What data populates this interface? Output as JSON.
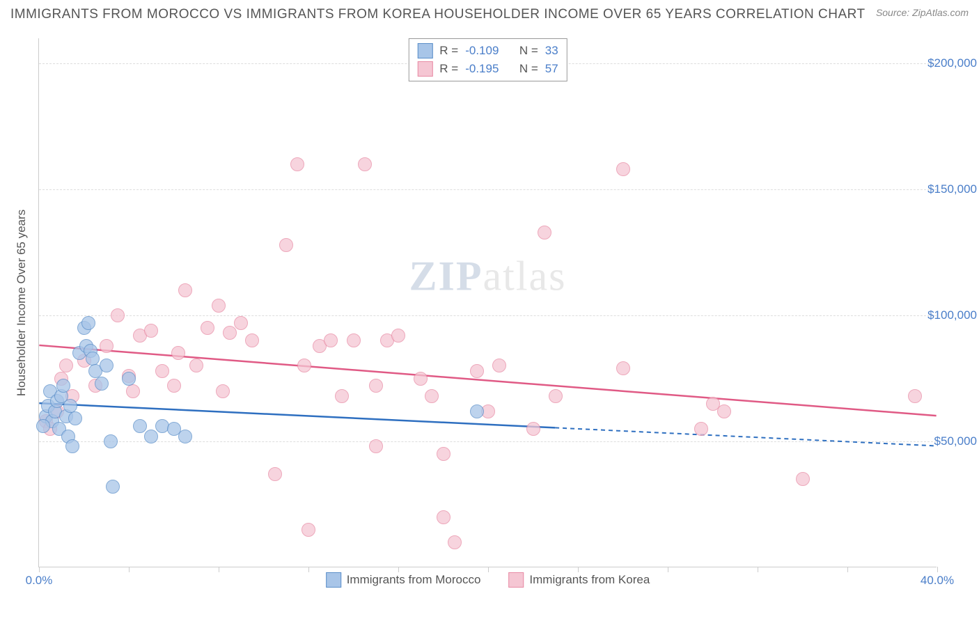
{
  "title": "IMMIGRANTS FROM MOROCCO VS IMMIGRANTS FROM KOREA HOUSEHOLDER INCOME OVER 65 YEARS CORRELATION CHART",
  "source_label": "Source: ",
  "source_value": "ZipAtlas.com",
  "watermark_bold": "ZIP",
  "watermark_rest": "atlas",
  "y_axis_label": "Householder Income Over 65 years",
  "chart": {
    "type": "scatter",
    "xlim": [
      0,
      40
    ],
    "ylim": [
      0,
      210000
    ],
    "x_tick_positions": [
      0,
      4,
      8,
      12,
      16,
      20,
      24,
      28,
      32,
      36,
      40
    ],
    "x_tick_labels_shown": {
      "0": "0.0%",
      "40": "40.0%"
    },
    "y_grid": [
      50000,
      100000,
      150000,
      200000
    ],
    "y_tick_labels": {
      "50000": "$50,000",
      "100000": "$100,000",
      "150000": "$150,000",
      "200000": "$200,000"
    },
    "background_color": "#ffffff",
    "grid_color": "#dddddd"
  },
  "series": {
    "morocco": {
      "label": "Immigrants from Morocco",
      "fill": "#a8c5e8",
      "stroke": "#5b8fc9",
      "line_color": "#2e6fc0",
      "R": "-0.109",
      "N": "33",
      "regression": {
        "x1": 0,
        "y1": 65000,
        "x2": 40,
        "y2": 48000,
        "solid_until_x": 23
      },
      "points": [
        [
          0.3,
          60000
        ],
        [
          0.4,
          64000
        ],
        [
          0.5,
          70000
        ],
        [
          0.6,
          58000
        ],
        [
          0.7,
          62000
        ],
        [
          0.8,
          66000
        ],
        [
          0.9,
          55000
        ],
        [
          1.0,
          68000
        ],
        [
          1.1,
          72000
        ],
        [
          1.2,
          60000
        ],
        [
          1.3,
          52000
        ],
        [
          1.4,
          64000
        ],
        [
          1.8,
          85000
        ],
        [
          2.0,
          95000
        ],
        [
          2.1,
          88000
        ],
        [
          2.2,
          97000
        ],
        [
          2.3,
          86000
        ],
        [
          2.4,
          83000
        ],
        [
          2.5,
          78000
        ],
        [
          3.0,
          80000
        ],
        [
          3.2,
          50000
        ],
        [
          3.3,
          32000
        ],
        [
          4.0,
          75000
        ],
        [
          4.5,
          56000
        ],
        [
          5.0,
          52000
        ],
        [
          5.5,
          56000
        ],
        [
          6.0,
          55000
        ],
        [
          6.5,
          52000
        ],
        [
          2.8,
          73000
        ],
        [
          1.6,
          59000
        ],
        [
          0.2,
          56000
        ],
        [
          19.5,
          62000
        ],
        [
          1.5,
          48000
        ]
      ]
    },
    "korea": {
      "label": "Immigrants from Korea",
      "fill": "#f5c6d3",
      "stroke": "#e88ba5",
      "line_color": "#e05a85",
      "R": "-0.195",
      "N": "57",
      "regression": {
        "x1": 0,
        "y1": 88000,
        "x2": 40,
        "y2": 60000,
        "solid_until_x": 40
      },
      "points": [
        [
          0.3,
          58000
        ],
        [
          0.5,
          55000
        ],
        [
          0.8,
          62000
        ],
        [
          1.0,
          75000
        ],
        [
          1.2,
          80000
        ],
        [
          1.5,
          68000
        ],
        [
          2.0,
          82000
        ],
        [
          2.5,
          72000
        ],
        [
          3.0,
          88000
        ],
        [
          3.5,
          100000
        ],
        [
          4.0,
          76000
        ],
        [
          4.5,
          92000
        ],
        [
          5.0,
          94000
        ],
        [
          5.5,
          78000
        ],
        [
          6.0,
          72000
        ],
        [
          6.5,
          110000
        ],
        [
          7.0,
          80000
        ],
        [
          7.5,
          95000
        ],
        [
          8.0,
          104000
        ],
        [
          8.5,
          93000
        ],
        [
          9.0,
          97000
        ],
        [
          9.5,
          90000
        ],
        [
          10.5,
          37000
        ],
        [
          11.0,
          128000
        ],
        [
          11.5,
          160000
        ],
        [
          12.0,
          15000
        ],
        [
          12.5,
          88000
        ],
        [
          13.5,
          68000
        ],
        [
          14.0,
          90000
        ],
        [
          14.5,
          160000
        ],
        [
          15.0,
          48000
        ],
        [
          15.0,
          72000
        ],
        [
          15.5,
          90000
        ],
        [
          16.0,
          92000
        ],
        [
          17.0,
          75000
        ],
        [
          17.5,
          68000
        ],
        [
          18.0,
          20000
        ],
        [
          18.0,
          45000
        ],
        [
          18.5,
          10000
        ],
        [
          19.5,
          78000
        ],
        [
          20.0,
          62000
        ],
        [
          20.5,
          80000
        ],
        [
          22.0,
          55000
        ],
        [
          22.5,
          133000
        ],
        [
          23.0,
          68000
        ],
        [
          26.0,
          79000
        ],
        [
          26.0,
          158000
        ],
        [
          29.5,
          55000
        ],
        [
          30.0,
          65000
        ],
        [
          30.5,
          62000
        ],
        [
          34.0,
          35000
        ],
        [
          39.0,
          68000
        ],
        [
          4.2,
          70000
        ],
        [
          6.2,
          85000
        ],
        [
          8.2,
          70000
        ],
        [
          11.8,
          80000
        ],
        [
          13.0,
          90000
        ]
      ]
    }
  },
  "legend_top_prefix_R": "R = ",
  "legend_top_prefix_N": "N = "
}
